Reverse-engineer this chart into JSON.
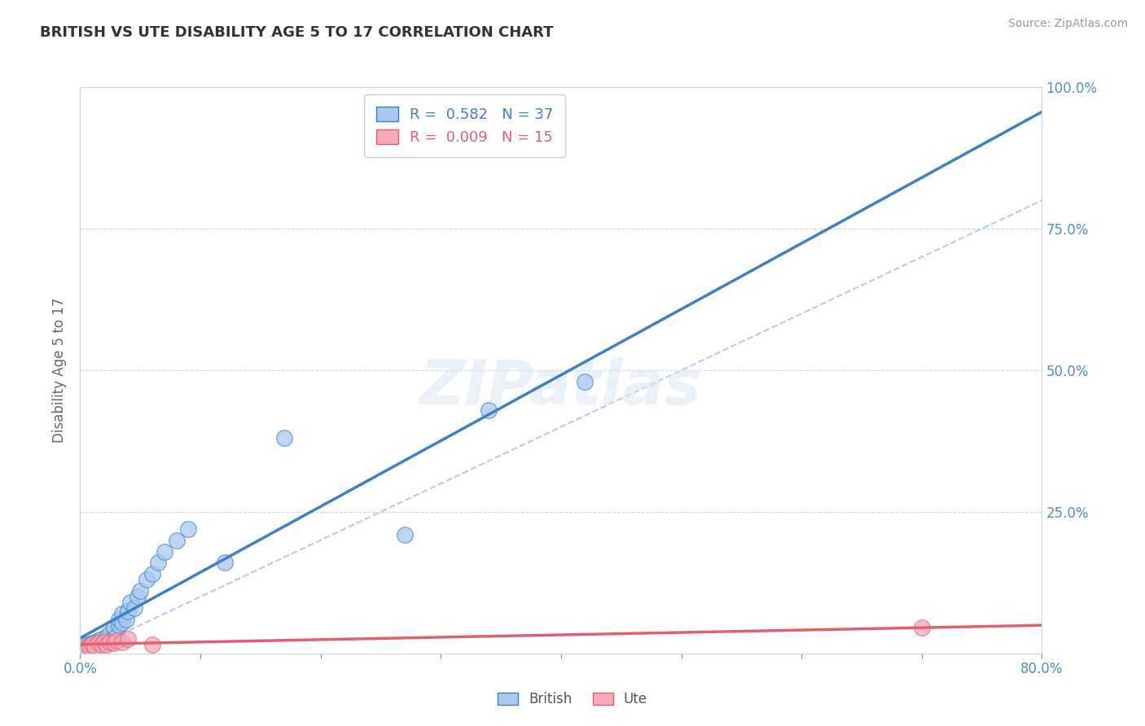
{
  "title": "BRITISH VS UTE DISABILITY AGE 5 TO 17 CORRELATION CHART",
  "source_text": "Source: ZipAtlas.com",
  "ylabel": "Disability Age 5 to 17",
  "xlim": [
    0.0,
    0.8
  ],
  "ylim": [
    0.0,
    1.0
  ],
  "british_R": 0.582,
  "british_N": 37,
  "ute_R": 0.009,
  "ute_N": 15,
  "british_color": "#a8c8f0",
  "ute_color": "#f4a8b8",
  "british_line_color": "#4080c0",
  "ute_line_color": "#e06070",
  "diagonal_color": "#b8cce4",
  "grid_color": "#c8d8e8",
  "axis_color": "#5090c0",
  "watermark": "ZIPatlas",
  "british_x": [
    0.005,
    0.007,
    0.01,
    0.012,
    0.015,
    0.015,
    0.018,
    0.018,
    0.02,
    0.022,
    0.022,
    0.025,
    0.025,
    0.028,
    0.028,
    0.03,
    0.032,
    0.032,
    0.035,
    0.035,
    0.038,
    0.04,
    0.042,
    0.045,
    0.048,
    0.05,
    0.055,
    0.06,
    0.065,
    0.07,
    0.08,
    0.09,
    0.12,
    0.17,
    0.27,
    0.34,
    0.42
  ],
  "british_y": [
    0.015,
    0.015,
    0.018,
    0.02,
    0.018,
    0.022,
    0.02,
    0.025,
    0.022,
    0.025,
    0.03,
    0.025,
    0.035,
    0.028,
    0.045,
    0.03,
    0.05,
    0.06,
    0.055,
    0.07,
    0.06,
    0.075,
    0.09,
    0.08,
    0.1,
    0.11,
    0.13,
    0.14,
    0.16,
    0.18,
    0.2,
    0.22,
    0.16,
    0.38,
    0.21,
    0.43,
    0.48
  ],
  "ute_x": [
    0.005,
    0.008,
    0.01,
    0.012,
    0.015,
    0.018,
    0.02,
    0.022,
    0.025,
    0.028,
    0.03,
    0.035,
    0.04,
    0.06,
    0.7
  ],
  "ute_y": [
    0.01,
    0.012,
    0.015,
    0.012,
    0.018,
    0.015,
    0.02,
    0.015,
    0.02,
    0.018,
    0.022,
    0.02,
    0.025,
    0.015,
    0.045
  ],
  "brit_line_x0": 0.0,
  "brit_line_y0": 0.005,
  "brit_line_x1": 0.8,
  "brit_line_y1": 0.98,
  "ute_line_x0": 0.0,
  "ute_line_y0": 0.018,
  "ute_line_x1": 0.8,
  "ute_line_y1": 0.02
}
